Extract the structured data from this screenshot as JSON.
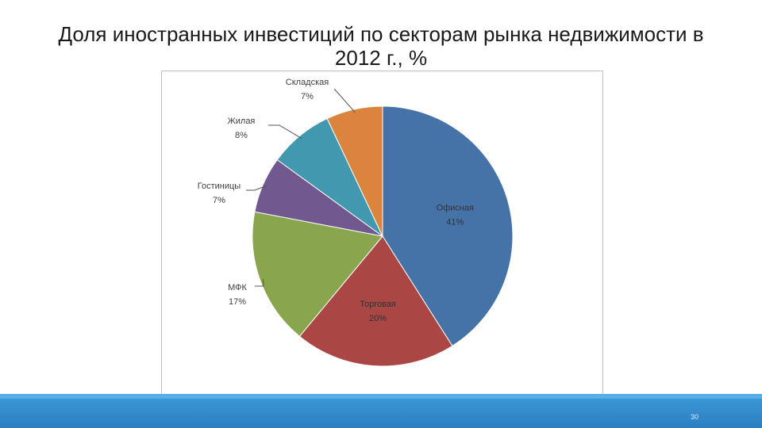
{
  "slide": {
    "title_line1": "Доля иностранных инвестиций по секторам рынка недвижимости в",
    "title_line2": "2012 г., %",
    "page_number": "30"
  },
  "colors": {
    "footer": "#2b7fc1",
    "label_dark": "#404040",
    "label_light": "#333333"
  },
  "chart_data": {
    "type": "pie",
    "title": "",
    "start_angle_deg": 0,
    "direction": "clockwise",
    "slices": [
      {
        "name": "Офисная",
        "value": 41,
        "label": "41%",
        "color": "#4572a7",
        "label_position": "inside"
      },
      {
        "name": "Торговая",
        "value": 20,
        "label": "20%",
        "color": "#aa4643",
        "label_position": "inside"
      },
      {
        "name": "МФК",
        "value": 17,
        "label": "17%",
        "color": "#89a54e",
        "label_position": "outside"
      },
      {
        "name": "Гостиницы",
        "value": 7,
        "label": "7%",
        "color": "#71588f",
        "label_position": "outside"
      },
      {
        "name": "Жилая",
        "value": 8,
        "label": "8%",
        "color": "#4198af",
        "label_position": "outside"
      },
      {
        "name": "Складская",
        "value": 7,
        "label": "7%",
        "color": "#db843d",
        "label_position": "outside"
      }
    ]
  }
}
